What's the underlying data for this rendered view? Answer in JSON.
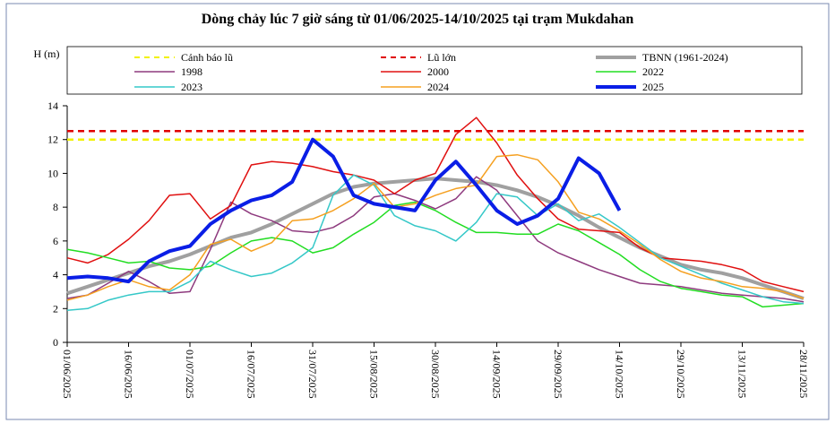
{
  "chart_data": {
    "type": "line",
    "title": "Dòng chảy lúc 7 giờ sáng từ 01/06/2025-14/10/2025 tại trạm Mukdahan",
    "y_label": "H (m)",
    "x": [
      "01/06/2025",
      "06/06/2025",
      "11/06/2025",
      "16/06/2025",
      "21/06/2025",
      "26/06/2025",
      "01/07/2025",
      "06/07/2025",
      "11/07/2025",
      "16/07/2025",
      "21/07/2025",
      "26/07/2025",
      "31/07/2025",
      "05/08/2025",
      "10/08/2025",
      "15/08/2025",
      "20/08/2025",
      "25/08/2025",
      "30/08/2025",
      "04/09/2025",
      "09/09/2025",
      "14/09/2025",
      "19/09/2025",
      "24/09/2025",
      "29/09/2025",
      "04/10/2025",
      "09/10/2025",
      "14/10/2025",
      "19/10/2025",
      "24/10/2025",
      "29/10/2025",
      "03/11/2025",
      "08/11/2025",
      "13/11/2025",
      "18/11/2025",
      "23/11/2025",
      "28/11/2025"
    ],
    "xticks": [
      "01/06/2025",
      "16/06/2025",
      "01/07/2025",
      "16/07/2025",
      "31/07/2025",
      "15/08/2025",
      "30/08/2025",
      "14/09/2025",
      "29/09/2025",
      "14/10/2025",
      "29/10/2025",
      "13/11/2025",
      "28/11/2025"
    ],
    "ylim": [
      0,
      14
    ],
    "yticks": [
      0,
      2,
      4,
      6,
      8,
      10,
      12,
      14
    ],
    "reference_lines": [
      {
        "name": "Cảnh báo lũ",
        "color": "#f2f200",
        "value": 12
      },
      {
        "name": "Lũ lớn",
        "color": "#e00000",
        "value": 12.5
      }
    ],
    "series": [
      {
        "name": "TBNN (1961-2024)",
        "color": "#a0a0a0",
        "width": 4,
        "values": [
          2.9,
          3.3,
          3.7,
          4.1,
          4.5,
          4.8,
          5.2,
          5.7,
          6.2,
          6.5,
          7.0,
          7.6,
          8.2,
          8.8,
          9.2,
          9.4,
          9.5,
          9.6,
          9.7,
          9.6,
          9.5,
          9.3,
          9.0,
          8.6,
          8.1,
          7.5,
          6.8,
          6.2,
          5.6,
          5.1,
          4.6,
          4.3,
          4.1,
          3.8,
          3.4,
          3.0,
          2.6
        ]
      },
      {
        "name": "1998",
        "color": "#8e3a7e",
        "width": 1.5,
        "values": [
          2.6,
          2.8,
          3.5,
          4.2,
          3.6,
          2.9,
          3.0,
          5.5,
          8.3,
          7.6,
          7.2,
          6.6,
          6.5,
          6.8,
          7.5,
          8.6,
          8.8,
          8.4,
          7.9,
          8.5,
          9.8,
          9.0,
          7.5,
          6.0,
          5.3,
          4.8,
          4.3,
          3.9,
          3.5,
          3.4,
          3.3,
          3.1,
          2.9,
          2.8,
          2.7,
          2.6,
          2.4
        ]
      },
      {
        "name": "2000",
        "color": "#e01010",
        "width": 1.5,
        "values": [
          5.0,
          4.7,
          5.2,
          6.1,
          7.2,
          8.7,
          8.8,
          7.3,
          8.1,
          10.5,
          10.7,
          10.6,
          10.4,
          10.1,
          9.9,
          9.6,
          8.8,
          9.6,
          10.0,
          12.3,
          13.3,
          11.8,
          9.9,
          8.5,
          7.3,
          6.7,
          6.6,
          6.5,
          5.6,
          5.0,
          4.9,
          4.8,
          4.6,
          4.3,
          3.6,
          3.3,
          3.0
        ]
      },
      {
        "name": "2022",
        "color": "#22dd22",
        "width": 1.5,
        "values": [
          5.5,
          5.3,
          5.0,
          4.7,
          4.8,
          4.4,
          4.3,
          4.5,
          5.3,
          6.0,
          6.2,
          6.0,
          5.3,
          5.6,
          6.4,
          7.1,
          8.1,
          8.3,
          7.8,
          7.1,
          6.5,
          6.5,
          6.4,
          6.4,
          7.0,
          6.6,
          5.9,
          5.2,
          4.3,
          3.6,
          3.2,
          3.0,
          2.8,
          2.7,
          2.1,
          2.2,
          2.3
        ]
      },
      {
        "name": "2023",
        "color": "#35c8c8",
        "width": 1.5,
        "values": [
          1.9,
          2.0,
          2.5,
          2.8,
          3.0,
          3.0,
          3.6,
          4.8,
          4.3,
          3.9,
          4.1,
          4.7,
          5.6,
          8.7,
          9.9,
          9.3,
          7.5,
          6.9,
          6.6,
          6.0,
          7.1,
          8.8,
          8.6,
          7.5,
          8.2,
          7.2,
          7.6,
          6.8,
          5.9,
          5.0,
          4.5,
          4.0,
          3.5,
          3.1,
          2.7,
          2.4,
          2.3
        ]
      },
      {
        "name": "2024",
        "color": "#f5a020",
        "width": 1.5,
        "values": [
          2.5,
          2.8,
          3.3,
          3.7,
          3.3,
          3.1,
          4.0,
          5.8,
          6.1,
          5.4,
          5.9,
          7.2,
          7.3,
          7.8,
          8.5,
          9.4,
          8.0,
          8.2,
          8.7,
          9.1,
          9.3,
          11.0,
          11.1,
          10.8,
          9.5,
          7.7,
          7.3,
          6.6,
          5.8,
          4.9,
          4.2,
          3.8,
          3.6,
          3.3,
          3.2,
          3.0,
          2.6
        ]
      },
      {
        "name": "2025",
        "color": "#0a1ee6",
        "width": 4,
        "values": [
          3.8,
          3.9,
          3.8,
          3.6,
          4.8,
          5.4,
          5.7,
          7.0,
          7.8,
          8.4,
          8.7,
          9.5,
          12.0,
          11.0,
          8.7,
          8.2,
          8.0,
          7.8,
          9.6,
          10.7,
          9.3,
          7.8,
          7.0,
          7.5,
          8.5,
          10.9,
          10.0,
          7.8,
          null,
          null,
          null,
          null,
          null,
          null,
          null,
          null,
          null
        ]
      }
    ]
  }
}
